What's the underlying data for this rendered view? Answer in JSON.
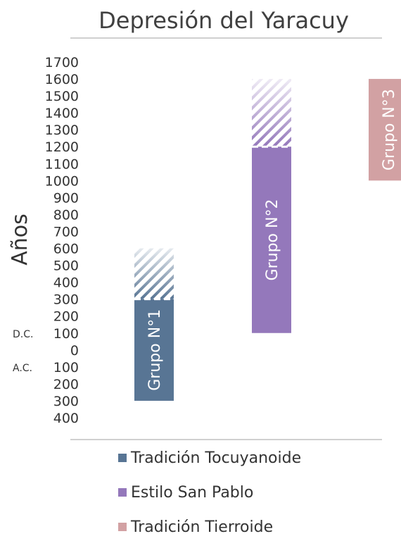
{
  "chart_data": {
    "type": "bar",
    "title": "Depresión del Yaracuy",
    "ylabel": "Años",
    "y_axis": {
      "ticks": [
        1700,
        1600,
        1500,
        1400,
        1300,
        1200,
        1100,
        1000,
        900,
        800,
        700,
        600,
        500,
        400,
        300,
        200,
        100,
        0,
        -100,
        -200,
        -300,
        -400
      ],
      "tick_labels": [
        "1700",
        "1600",
        "1500",
        "1400",
        "1300",
        "1200",
        "1100",
        "1000",
        "900",
        "800",
        "700",
        "600",
        "500",
        "400",
        "300",
        "200",
        "100",
        "0",
        "100",
        "200",
        "300",
        "400"
      ],
      "era_labels": {
        "dc": "D.C.",
        "ac": "A.C."
      },
      "ylim": [
        -400,
        1700
      ]
    },
    "grid": false,
    "legend_position": "bottom",
    "series": [
      {
        "name": "Tradición Tocuyanoide",
        "color": "#587594",
        "bar_label": "Grupo N°1",
        "start": -300,
        "end": 300,
        "uncertain_end": 600
      },
      {
        "name": "Estilo San Pablo",
        "color": "#9478bb",
        "bar_label": "Grupo N°2",
        "start": 100,
        "end": 1200,
        "uncertain_end": 1600
      },
      {
        "name": "Tradición Tierroide",
        "color": "#d2a1a3",
        "bar_label": "Grupo N°3",
        "start": 1000,
        "end": 1600
      }
    ]
  }
}
